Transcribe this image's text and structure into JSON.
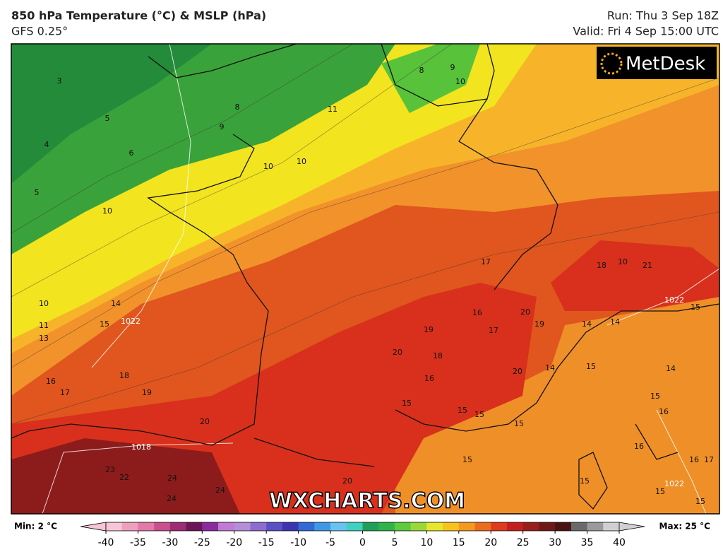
{
  "header": {
    "title": "850 hPa Temperature (°C) & MSLP (hPa)",
    "model": "GFS 0.25°",
    "run": "Run: Thu 3 Sep 18Z",
    "valid": "Valid: Fri 4 Sep 15:00 UTC"
  },
  "logo": "MetDesk",
  "watermark": "WXCHARTS.COM",
  "map": {
    "labels": [
      3,
      5,
      4,
      6,
      5,
      10,
      8,
      9,
      10,
      10,
      11,
      8,
      9,
      10,
      10,
      14,
      15,
      11,
      13,
      16,
      17,
      18,
      19,
      20,
      23,
      22,
      24,
      24,
      24,
      20,
      17,
      16,
      17,
      19,
      20,
      18,
      16,
      15,
      15,
      15,
      15,
      15,
      20,
      14,
      15,
      14,
      14,
      14,
      15,
      16,
      15,
      16,
      17,
      15,
      15,
      15,
      21,
      18,
      10,
      20,
      19,
      16
    ],
    "isobar_labels": [
      1022,
      1018,
      1022,
      1022
    ]
  },
  "legend": {
    "min": "Min: 2 °C",
    "max": "Max: 25 °C",
    "range": [
      -40,
      40
    ],
    "ticks": [
      -40,
      -35,
      -30,
      -25,
      -20,
      -15,
      -10,
      -5,
      0,
      5,
      10,
      15,
      20,
      25,
      30,
      35,
      40
    ],
    "colors": [
      "#f5c6d6",
      "#ee9fbd",
      "#e17aa8",
      "#c94f8f",
      "#9c2d72",
      "#6e1458",
      "#8a2ca0",
      "#c27ad6",
      "#b48fd8",
      "#8b6dd0",
      "#5b4fc4",
      "#3b36b0",
      "#2f6ad6",
      "#3f98e6",
      "#69c2f0",
      "#3fd0c0",
      "#1fa05a",
      "#2fb44a",
      "#5ccb3c",
      "#9ad83a",
      "#e6e62a",
      "#f7c21e",
      "#f39a1e",
      "#ec6c1e",
      "#e03a1c",
      "#c41e1e",
      "#9a1c1c",
      "#701818",
      "#4a1212",
      "#6a6a6a",
      "#9a9a9a",
      "#d0d0d0"
    ]
  }
}
